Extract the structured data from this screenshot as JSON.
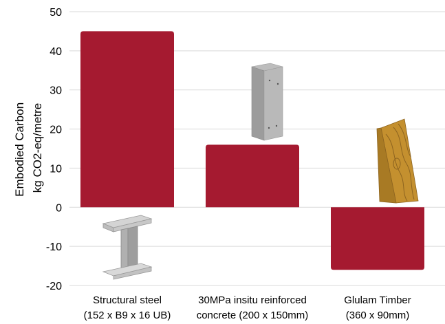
{
  "chart_data": {
    "type": "bar",
    "categories": [
      [
        "Structural steel",
        "(152 x B9 x 16 UB)"
      ],
      [
        "30MPa insitu reinforced",
        "concrete (200 x 150mm)"
      ],
      [
        "Glulam Timber",
        "(360 x 90mm)"
      ]
    ],
    "values": [
      45,
      16,
      -16
    ],
    "ylabel": [
      "Embodied Carbon",
      "kg CO2-eq/metre"
    ],
    "ylim": [
      -20,
      50
    ],
    "yticks": [
      50,
      40,
      30,
      20,
      10,
      0,
      -10,
      -20
    ],
    "grid": true,
    "colors": {
      "bar": "#a51a30",
      "grid": "#d9d9d9"
    },
    "icons": [
      "steel-i-beam-icon",
      "concrete-column-icon",
      "timber-plank-icon"
    ]
  }
}
